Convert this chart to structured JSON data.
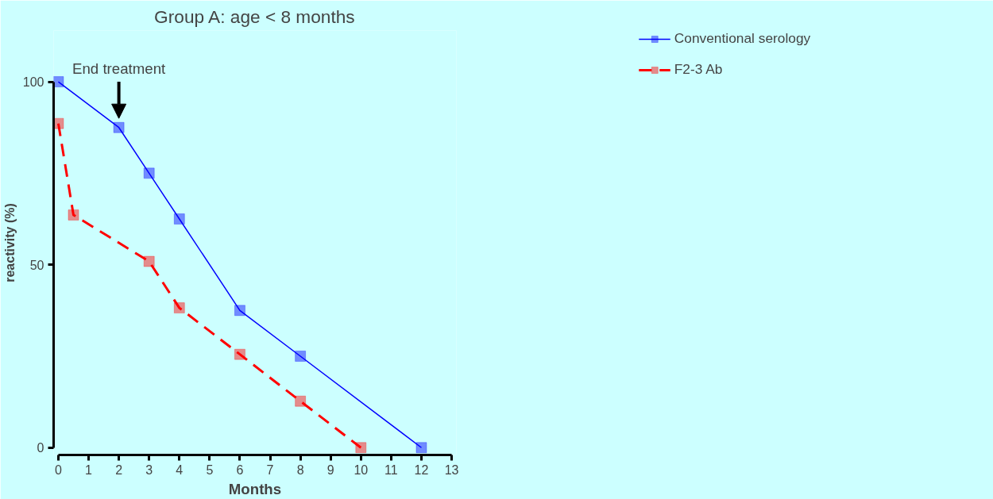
{
  "chart_data": {
    "type": "line",
    "title": "Group A: age < 8 months",
    "xlabel": "Months",
    "ylabel": "reactivity (%)",
    "x": [
      0,
      2,
      3,
      4,
      6,
      8,
      12
    ],
    "series": [
      {
        "name": "Conventional serology",
        "color": "#0000ff",
        "line_style": "solid",
        "values": [
          100,
          87.5,
          75,
          62.5,
          37.5,
          25,
          0
        ]
      },
      {
        "name": "F2-3 Ab",
        "color": "#ff0000",
        "line_style": "dashed",
        "x": [
          0,
          0.5,
          3,
          4,
          6,
          8,
          10
        ],
        "values": [
          88.6,
          63.6,
          50.9,
          38.2,
          25.5,
          12.7,
          0
        ]
      }
    ],
    "xlim": [
      0,
      13
    ],
    "ylim": [
      0,
      100
    ],
    "xticks": [
      0,
      1,
      2,
      3,
      4,
      5,
      6,
      7,
      8,
      9,
      10,
      11,
      12,
      13
    ],
    "yticks": [
      0,
      50,
      100
    ],
    "annotations": [
      {
        "text": "End treatment",
        "x": 2,
        "y": 90
      }
    ],
    "marker": "square",
    "grid": false,
    "legend": "right"
  }
}
